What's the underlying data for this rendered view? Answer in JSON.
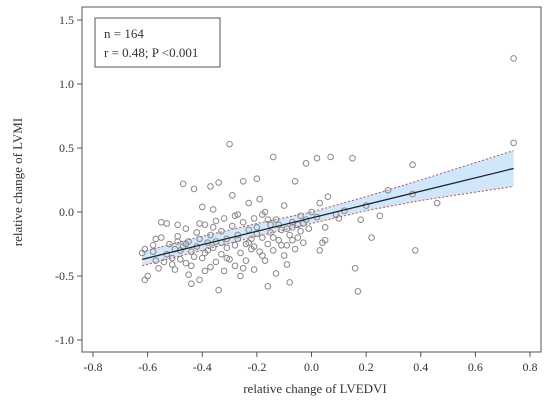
{
  "chart_data": {
    "type": "scatter",
    "title": "",
    "xlabel": "relative change of LVEDVI",
    "ylabel": "relative change of LVMI",
    "xlim": [
      -0.8,
      0.8
    ],
    "ylim": [
      -1.0,
      1.5
    ],
    "xticks": [
      -0.8,
      -0.6,
      -0.4,
      -0.2,
      0.0,
      0.2,
      0.4,
      0.6,
      0.8
    ],
    "yticks": [
      -1.0,
      -0.5,
      0.0,
      0.5,
      1.0,
      1.5
    ],
    "xtick_labels": [
      "-0.8",
      "-0.6",
      "-0.4",
      "-0.2",
      "0.0",
      "0.2",
      "0.4",
      "0.6",
      "0.8"
    ],
    "ytick_labels": [
      "-1.0",
      "-0.5",
      "0.0",
      "0.5",
      "1.0",
      "1.5"
    ],
    "grid": false,
    "annotation": {
      "line1": "n = 164",
      "line2": "r = 0.48; P <0.001"
    },
    "regression": {
      "x": [
        -0.62,
        0.74
      ],
      "y": [
        -0.37,
        0.34
      ]
    },
    "confidence_band": {
      "x": [
        -0.62,
        -0.4,
        -0.2,
        0.0,
        0.2,
        0.4,
        0.74
      ],
      "upper": [
        -0.31,
        -0.19,
        -0.09,
        0.0,
        0.12,
        0.25,
        0.48
      ],
      "lower": [
        -0.42,
        -0.3,
        -0.19,
        -0.09,
        0.01,
        0.09,
        0.2
      ]
    },
    "colors": {
      "points": "#888888",
      "regression": "#222222",
      "band_fill": "#cfe6fb",
      "band_edge": "#c0504d",
      "axes": "#555555"
    },
    "points": [
      [
        -0.61,
        -0.29
      ],
      [
        -0.61,
        -0.53
      ],
      [
        -0.6,
        -0.5
      ],
      [
        -0.58,
        -0.31
      ],
      [
        -0.57,
        -0.38
      ],
      [
        -0.56,
        -0.44
      ],
      [
        -0.55,
        -0.08
      ],
      [
        -0.55,
        -0.2
      ],
      [
        -0.53,
        -0.33
      ],
      [
        -0.52,
        -0.25
      ],
      [
        -0.51,
        -0.41
      ],
      [
        -0.51,
        -0.36
      ],
      [
        -0.5,
        -0.29
      ],
      [
        -0.49,
        -0.1
      ],
      [
        -0.49,
        -0.19
      ],
      [
        -0.48,
        -0.3
      ],
      [
        -0.48,
        -0.37
      ],
      [
        -0.47,
        0.22
      ],
      [
        -0.47,
        -0.27
      ],
      [
        -0.46,
        -0.13
      ],
      [
        -0.46,
        -0.4
      ],
      [
        -0.45,
        -0.23
      ],
      [
        -0.45,
        -0.49
      ],
      [
        -0.44,
        -0.31
      ],
      [
        -0.44,
        -0.56
      ],
      [
        -0.43,
        0.18
      ],
      [
        -0.43,
        -0.35
      ],
      [
        -0.42,
        -0.16
      ],
      [
        -0.42,
        -0.27
      ],
      [
        -0.41,
        -0.21
      ],
      [
        -0.41,
        -0.53
      ],
      [
        -0.4,
        0.04
      ],
      [
        -0.4,
        -0.36
      ],
      [
        -0.39,
        -0.1
      ],
      [
        -0.39,
        -0.46
      ],
      [
        -0.38,
        -0.24
      ],
      [
        -0.38,
        -0.3
      ],
      [
        -0.37,
        0.2
      ],
      [
        -0.37,
        -0.18
      ],
      [
        -0.37,
        -0.43
      ],
      [
        -0.36,
        0.02
      ],
      [
        -0.36,
        -0.12
      ],
      [
        -0.36,
        -0.28
      ],
      [
        -0.35,
        -0.39
      ],
      [
        -0.35,
        -0.23
      ],
      [
        -0.34,
        0.23
      ],
      [
        -0.34,
        -0.61
      ],
      [
        -0.33,
        -0.15
      ],
      [
        -0.33,
        -0.33
      ],
      [
        -0.32,
        -0.46
      ],
      [
        -0.32,
        -0.05
      ],
      [
        -0.31,
        -0.21
      ],
      [
        -0.31,
        -0.28
      ],
      [
        -0.3,
        0.53
      ],
      [
        -0.3,
        -0.37
      ],
      [
        -0.29,
        -0.11
      ],
      [
        -0.29,
        0.13
      ],
      [
        -0.28,
        -0.26
      ],
      [
        -0.28,
        -0.42
      ],
      [
        -0.27,
        -0.18
      ],
      [
        -0.27,
        -0.02
      ],
      [
        -0.26,
        -0.32
      ],
      [
        -0.26,
        -0.5
      ],
      [
        -0.25,
        0.24
      ],
      [
        -0.25,
        -0.08
      ],
      [
        -0.24,
        -0.25
      ],
      [
        -0.24,
        -0.38
      ],
      [
        -0.23,
        -0.14
      ],
      [
        -0.23,
        0.07
      ],
      [
        -0.22,
        -0.29
      ],
      [
        -0.22,
        -0.21
      ],
      [
        -0.21,
        -0.05
      ],
      [
        -0.21,
        -0.45
      ],
      [
        -0.2,
        0.26
      ],
      [
        -0.2,
        -0.12
      ],
      [
        -0.19,
        -0.31
      ],
      [
        -0.19,
        0.1
      ],
      [
        -0.18,
        -0.02
      ],
      [
        -0.18,
        -0.2
      ],
      [
        -0.17,
        -0.38
      ],
      [
        -0.17,
        0.0
      ],
      [
        -0.16,
        -0.25
      ],
      [
        -0.16,
        -0.58
      ],
      [
        -0.15,
        -0.1
      ],
      [
        -0.15,
        -0.16
      ],
      [
        -0.14,
        0.43
      ],
      [
        -0.14,
        -0.3
      ],
      [
        -0.13,
        -0.06
      ],
      [
        -0.13,
        -0.48
      ],
      [
        -0.12,
        -0.22
      ],
      [
        -0.11,
        -0.14
      ],
      [
        -0.1,
        -0.34
      ],
      [
        -0.1,
        0.05
      ],
      [
        -0.09,
        -0.26
      ],
      [
        -0.09,
        -0.41
      ],
      [
        -0.08,
        -0.18
      ],
      [
        -0.08,
        -0.55
      ],
      [
        -0.07,
        -0.08
      ],
      [
        -0.07,
        -0.12
      ],
      [
        -0.06,
        0.24
      ],
      [
        -0.06,
        -0.29
      ],
      [
        -0.05,
        -0.2
      ],
      [
        -0.04,
        -0.03
      ],
      [
        -0.04,
        -0.15
      ],
      [
        -0.03,
        -0.09
      ],
      [
        -0.02,
        0.38
      ],
      [
        -0.02,
        -0.06
      ],
      [
        0.0,
        0.0
      ],
      [
        0.02,
        0.42
      ],
      [
        0.03,
        0.07
      ],
      [
        0.03,
        -0.3
      ],
      [
        0.04,
        -0.24
      ],
      [
        0.05,
        -0.22
      ],
      [
        0.06,
        0.12
      ],
      [
        0.07,
        0.43
      ],
      [
        0.1,
        -0.05
      ],
      [
        0.12,
        0.01
      ],
      [
        0.15,
        0.42
      ],
      [
        0.16,
        -0.44
      ],
      [
        0.17,
        -0.62
      ],
      [
        0.18,
        -0.06
      ],
      [
        0.2,
        0.05
      ],
      [
        0.22,
        -0.2
      ],
      [
        0.25,
        -0.03
      ],
      [
        0.28,
        0.17
      ],
      [
        0.37,
        0.37
      ],
      [
        0.37,
        0.14
      ],
      [
        0.38,
        -0.3
      ],
      [
        0.46,
        0.07
      ],
      [
        0.74,
        1.2
      ],
      [
        0.74,
        0.54
      ],
      [
        -0.58,
        -0.26
      ],
      [
        -0.53,
        -0.09
      ],
      [
        -0.5,
        -0.45
      ],
      [
        -0.46,
        -0.25
      ],
      [
        -0.44,
        -0.42
      ],
      [
        -0.41,
        -0.09
      ],
      [
        -0.39,
        -0.32
      ],
      [
        -0.35,
        -0.07
      ],
      [
        -0.33,
        -0.24
      ],
      [
        -0.31,
        -0.36
      ],
      [
        -0.28,
        -0.03
      ],
      [
        -0.27,
        -0.21
      ],
      [
        -0.25,
        -0.44
      ],
      [
        -0.23,
        -0.24
      ],
      [
        -0.21,
        -0.27
      ],
      [
        -0.2,
        -0.17
      ],
      [
        -0.18,
        -0.34
      ],
      [
        -0.16,
        -0.06
      ],
      [
        -0.14,
        -0.2
      ],
      [
        -0.12,
        -0.1
      ],
      [
        -0.11,
        -0.26
      ],
      [
        -0.09,
        -0.13
      ],
      [
        -0.07,
        -0.22
      ],
      [
        -0.05,
        -0.1
      ],
      [
        -0.03,
        -0.24
      ],
      [
        -0.01,
        -0.13
      ],
      [
        0.02,
        -0.04
      ],
      [
        0.05,
        -0.12
      ],
      [
        0.09,
        -0.02
      ],
      [
        -0.62,
        -0.32
      ],
      [
        -0.57,
        -0.21
      ],
      [
        -0.54,
        -0.39
      ],
      [
        -0.49,
        -0.23
      ]
    ]
  }
}
